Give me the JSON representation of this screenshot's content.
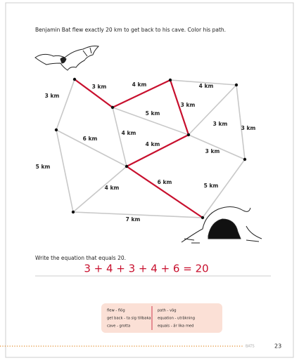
{
  "instruction": "Benjamin Bat flew exactly 20 km to get back to his cave. Color his path.",
  "edges": [
    "3 km",
    "4 km",
    "4 km",
    "3 km",
    "5 km",
    "3 km",
    "3 km",
    "3 km",
    "3 km",
    "4 km",
    "4 km",
    "6 km",
    "5 km",
    "4 km",
    "6 km",
    "5 km",
    "7 km"
  ],
  "question": "Write the equation that equals 20.",
  "equation": "3 + 4 + 3 + 4 + 6 = 20",
  "vocabulary": {
    "left": [
      "flew - flög",
      "get back - ta sig tillbaka",
      "cave - grotta"
    ],
    "right": [
      "path - väg",
      "equation - uträkning",
      "equals - är lika med"
    ]
  },
  "footer": {
    "section": "BATS",
    "page_number": "23"
  }
}
